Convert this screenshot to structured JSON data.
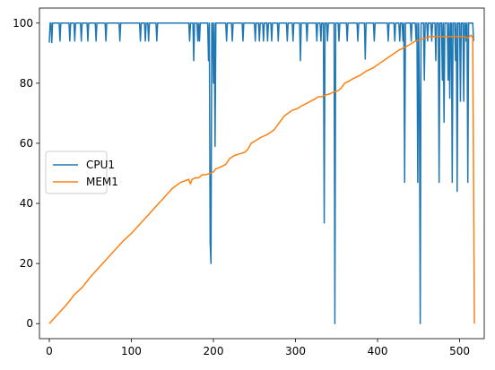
{
  "chart_data": {
    "type": "line",
    "title": "",
    "xlabel": "",
    "ylabel": "",
    "xlim": [
      -12,
      530
    ],
    "ylim": [
      -5,
      105
    ],
    "xticks": [
      0,
      100,
      200,
      300,
      400,
      500
    ],
    "yticks": [
      0,
      20,
      40,
      60,
      80,
      100
    ],
    "grid": false,
    "legend_position": "center-left",
    "series": [
      {
        "name": "CPU1",
        "color": "#1f77b4",
        "points": [
          [
            0,
            93.5
          ],
          [
            1,
            100
          ],
          [
            2,
            100
          ],
          [
            3,
            93.5
          ],
          [
            4,
            100
          ],
          [
            12,
            100
          ],
          [
            13,
            94
          ],
          [
            14,
            100
          ],
          [
            24,
            100
          ],
          [
            25,
            94
          ],
          [
            26,
            100
          ],
          [
            30,
            100
          ],
          [
            31,
            94
          ],
          [
            32,
            100
          ],
          [
            38,
            100
          ],
          [
            39,
            94
          ],
          [
            40,
            100
          ],
          [
            46,
            100
          ],
          [
            47,
            94
          ],
          [
            48,
            100
          ],
          [
            56,
            100
          ],
          [
            57,
            94
          ],
          [
            58,
            100
          ],
          [
            68,
            100
          ],
          [
            69,
            94
          ],
          [
            70,
            100
          ],
          [
            85,
            100
          ],
          [
            86,
            94
          ],
          [
            87,
            100
          ],
          [
            110,
            100
          ],
          [
            111,
            94
          ],
          [
            112,
            100
          ],
          [
            116,
            100
          ],
          [
            117,
            94
          ],
          [
            118,
            100
          ],
          [
            120,
            100
          ],
          [
            121,
            94
          ],
          [
            122,
            100
          ],
          [
            130,
            100
          ],
          [
            131,
            94
          ],
          [
            132,
            100
          ],
          [
            170,
            100
          ],
          [
            171,
            94
          ],
          [
            172,
            100
          ],
          [
            175,
            100
          ],
          [
            176,
            87.5
          ],
          [
            177,
            100
          ],
          [
            180,
            100
          ],
          [
            181,
            94
          ],
          [
            182,
            100
          ],
          [
            183,
            94
          ],
          [
            184,
            100
          ],
          [
            193,
            100
          ],
          [
            194,
            87.5
          ],
          [
            195,
            100
          ],
          [
            196,
            27
          ],
          [
            197,
            20
          ],
          [
            198,
            100
          ],
          [
            199,
            100
          ],
          [
            200,
            80
          ],
          [
            201,
            100
          ],
          [
            202,
            59
          ],
          [
            203,
            100
          ],
          [
            215,
            100
          ],
          [
            216,
            94
          ],
          [
            217,
            100
          ],
          [
            222,
            100
          ],
          [
            223,
            94
          ],
          [
            224,
            100
          ],
          [
            235,
            100
          ],
          [
            236,
            94
          ],
          [
            237,
            100
          ],
          [
            250,
            100
          ],
          [
            251,
            94
          ],
          [
            252,
            100
          ],
          [
            255,
            100
          ],
          [
            256,
            94
          ],
          [
            257,
            100
          ],
          [
            260,
            100
          ],
          [
            261,
            94
          ],
          [
            262,
            100
          ],
          [
            265,
            100
          ],
          [
            266,
            94
          ],
          [
            267,
            100
          ],
          [
            270,
            100
          ],
          [
            271,
            94
          ],
          [
            272,
            100
          ],
          [
            278,
            100
          ],
          [
            279,
            94
          ],
          [
            280,
            100
          ],
          [
            289,
            100
          ],
          [
            290,
            94
          ],
          [
            291,
            100
          ],
          [
            296,
            100
          ],
          [
            297,
            94
          ],
          [
            298,
            100
          ],
          [
            305,
            100
          ],
          [
            306,
            87.5
          ],
          [
            307,
            100
          ],
          [
            313,
            100
          ],
          [
            314,
            94
          ],
          [
            315,
            100
          ],
          [
            325,
            100
          ],
          [
            326,
            94
          ],
          [
            327,
            100
          ],
          [
            330,
            100
          ],
          [
            331,
            94
          ],
          [
            332,
            100
          ],
          [
            334,
            100
          ],
          [
            335,
            33.5
          ],
          [
            336,
            100
          ],
          [
            338,
            100
          ],
          [
            339,
            94
          ],
          [
            340,
            100
          ],
          [
            347,
            100
          ],
          [
            348,
            0
          ],
          [
            349,
            100
          ],
          [
            352,
            100
          ],
          [
            353,
            94
          ],
          [
            354,
            100
          ],
          [
            362,
            100
          ],
          [
            363,
            94
          ],
          [
            364,
            100
          ],
          [
            375,
            100
          ],
          [
            376,
            94
          ],
          [
            377,
            100
          ],
          [
            384,
            100
          ],
          [
            385,
            88
          ],
          [
            386,
            100
          ],
          [
            395,
            100
          ],
          [
            396,
            94
          ],
          [
            397,
            100
          ],
          [
            412,
            100
          ],
          [
            413,
            94
          ],
          [
            414,
            100
          ],
          [
            420,
            100
          ],
          [
            421,
            94
          ],
          [
            422,
            100
          ],
          [
            426,
            100
          ],
          [
            427,
            94
          ],
          [
            428,
            100
          ],
          [
            430,
            100
          ],
          [
            431,
            94
          ],
          [
            432,
            100
          ],
          [
            433,
            47
          ],
          [
            434,
            100
          ],
          [
            440,
            100
          ],
          [
            441,
            94
          ],
          [
            442,
            100
          ],
          [
            446,
            100
          ],
          [
            447,
            94
          ],
          [
            448,
            100
          ],
          [
            449,
            47
          ],
          [
            450,
            100
          ],
          [
            451,
            75
          ],
          [
            452,
            0
          ],
          [
            453,
            100
          ],
          [
            456,
            100
          ],
          [
            457,
            81
          ],
          [
            458,
            100
          ],
          [
            460,
            100
          ],
          [
            461,
            94
          ],
          [
            462,
            100
          ],
          [
            465,
            100
          ],
          [
            466,
            94
          ],
          [
            467,
            100
          ],
          [
            470,
            100
          ],
          [
            471,
            87.5
          ],
          [
            472,
            100
          ],
          [
            474,
            100
          ],
          [
            475,
            47
          ],
          [
            476,
            100
          ],
          [
            478,
            100
          ],
          [
            479,
            81
          ],
          [
            480,
            100
          ],
          [
            481,
            67
          ],
          [
            482,
            100
          ],
          [
            485,
            100
          ],
          [
            486,
            81
          ],
          [
            487,
            100
          ],
          [
            488,
            75
          ],
          [
            489,
            100
          ],
          [
            490,
            100
          ],
          [
            491,
            47
          ],
          [
            492,
            100
          ],
          [
            494,
            100
          ],
          [
            495,
            87.5
          ],
          [
            496,
            100
          ],
          [
            497,
            44
          ],
          [
            498,
            100
          ],
          [
            500,
            100
          ],
          [
            501,
            74
          ],
          [
            502,
            100
          ],
          [
            504,
            100
          ],
          [
            505,
            74
          ],
          [
            506,
            100
          ],
          [
            507,
            100
          ],
          [
            508,
            94
          ],
          [
            509,
            100
          ],
          [
            510,
            47
          ],
          [
            511,
            100
          ],
          [
            514,
            100
          ],
          [
            515,
            100
          ],
          [
            516,
            100
          ],
          [
            517,
            94
          ]
        ]
      },
      {
        "name": "MEM1",
        "color": "#ff7f0e",
        "points": [
          [
            0,
            0
          ],
          [
            10,
            3
          ],
          [
            20,
            6
          ],
          [
            26,
            8
          ],
          [
            30,
            9.5
          ],
          [
            40,
            12
          ],
          [
            50,
            15.5
          ],
          [
            60,
            18.5
          ],
          [
            70,
            21.5
          ],
          [
            80,
            24.5
          ],
          [
            90,
            27.5
          ],
          [
            100,
            30
          ],
          [
            110,
            33
          ],
          [
            120,
            36
          ],
          [
            130,
            39
          ],
          [
            140,
            42
          ],
          [
            150,
            45
          ],
          [
            160,
            47
          ],
          [
            170,
            48
          ],
          [
            172,
            46.5
          ],
          [
            174,
            48
          ],
          [
            178,
            48.5
          ],
          [
            182,
            48.5
          ],
          [
            186,
            49.5
          ],
          [
            190,
            49.5
          ],
          [
            196,
            50
          ],
          [
            200,
            50.5
          ],
          [
            203,
            51.5
          ],
          [
            208,
            52
          ],
          [
            215,
            53
          ],
          [
            220,
            55
          ],
          [
            226,
            56
          ],
          [
            232,
            56.5
          ],
          [
            238,
            57
          ],
          [
            242,
            58
          ],
          [
            246,
            60
          ],
          [
            252,
            61
          ],
          [
            258,
            62
          ],
          [
            266,
            63
          ],
          [
            274,
            64.5
          ],
          [
            278,
            66
          ],
          [
            282,
            67.5
          ],
          [
            286,
            69
          ],
          [
            291,
            70
          ],
          [
            296,
            71
          ],
          [
            302,
            71.5
          ],
          [
            308,
            72.5
          ],
          [
            315,
            73.5
          ],
          [
            322,
            74.5
          ],
          [
            328,
            75.5
          ],
          [
            332,
            75.5
          ],
          [
            336,
            76
          ],
          [
            342,
            76.5
          ],
          [
            346,
            77
          ],
          [
            352,
            77.5
          ],
          [
            356,
            78.5
          ],
          [
            360,
            80
          ],
          [
            364,
            80.5
          ],
          [
            370,
            81.5
          ],
          [
            378,
            82.5
          ],
          [
            386,
            84
          ],
          [
            394,
            85
          ],
          [
            402,
            86.5
          ],
          [
            410,
            88
          ],
          [
            418,
            89.5
          ],
          [
            426,
            91
          ],
          [
            434,
            92
          ],
          [
            440,
            93
          ],
          [
            446,
            94
          ],
          [
            452,
            94.5
          ],
          [
            458,
            95
          ],
          [
            464,
            95.5
          ],
          [
            470,
            95.5
          ],
          [
            476,
            95.5
          ],
          [
            482,
            95.5
          ],
          [
            488,
            95.5
          ],
          [
            494,
            95.5
          ],
          [
            500,
            95.5
          ],
          [
            506,
            95.5
          ],
          [
            510,
            95
          ],
          [
            514,
            96
          ],
          [
            516,
            95
          ],
          [
            518,
            0
          ]
        ]
      }
    ]
  },
  "tick_labels": {
    "x": [
      "0",
      "100",
      "200",
      "300",
      "400",
      "500"
    ],
    "y": [
      "0",
      "20",
      "40",
      "60",
      "80",
      "100"
    ]
  },
  "legend": {
    "items": [
      {
        "label": "CPU1",
        "color": "#1f77b4"
      },
      {
        "label": "MEM1",
        "color": "#ff7f0e"
      }
    ]
  }
}
